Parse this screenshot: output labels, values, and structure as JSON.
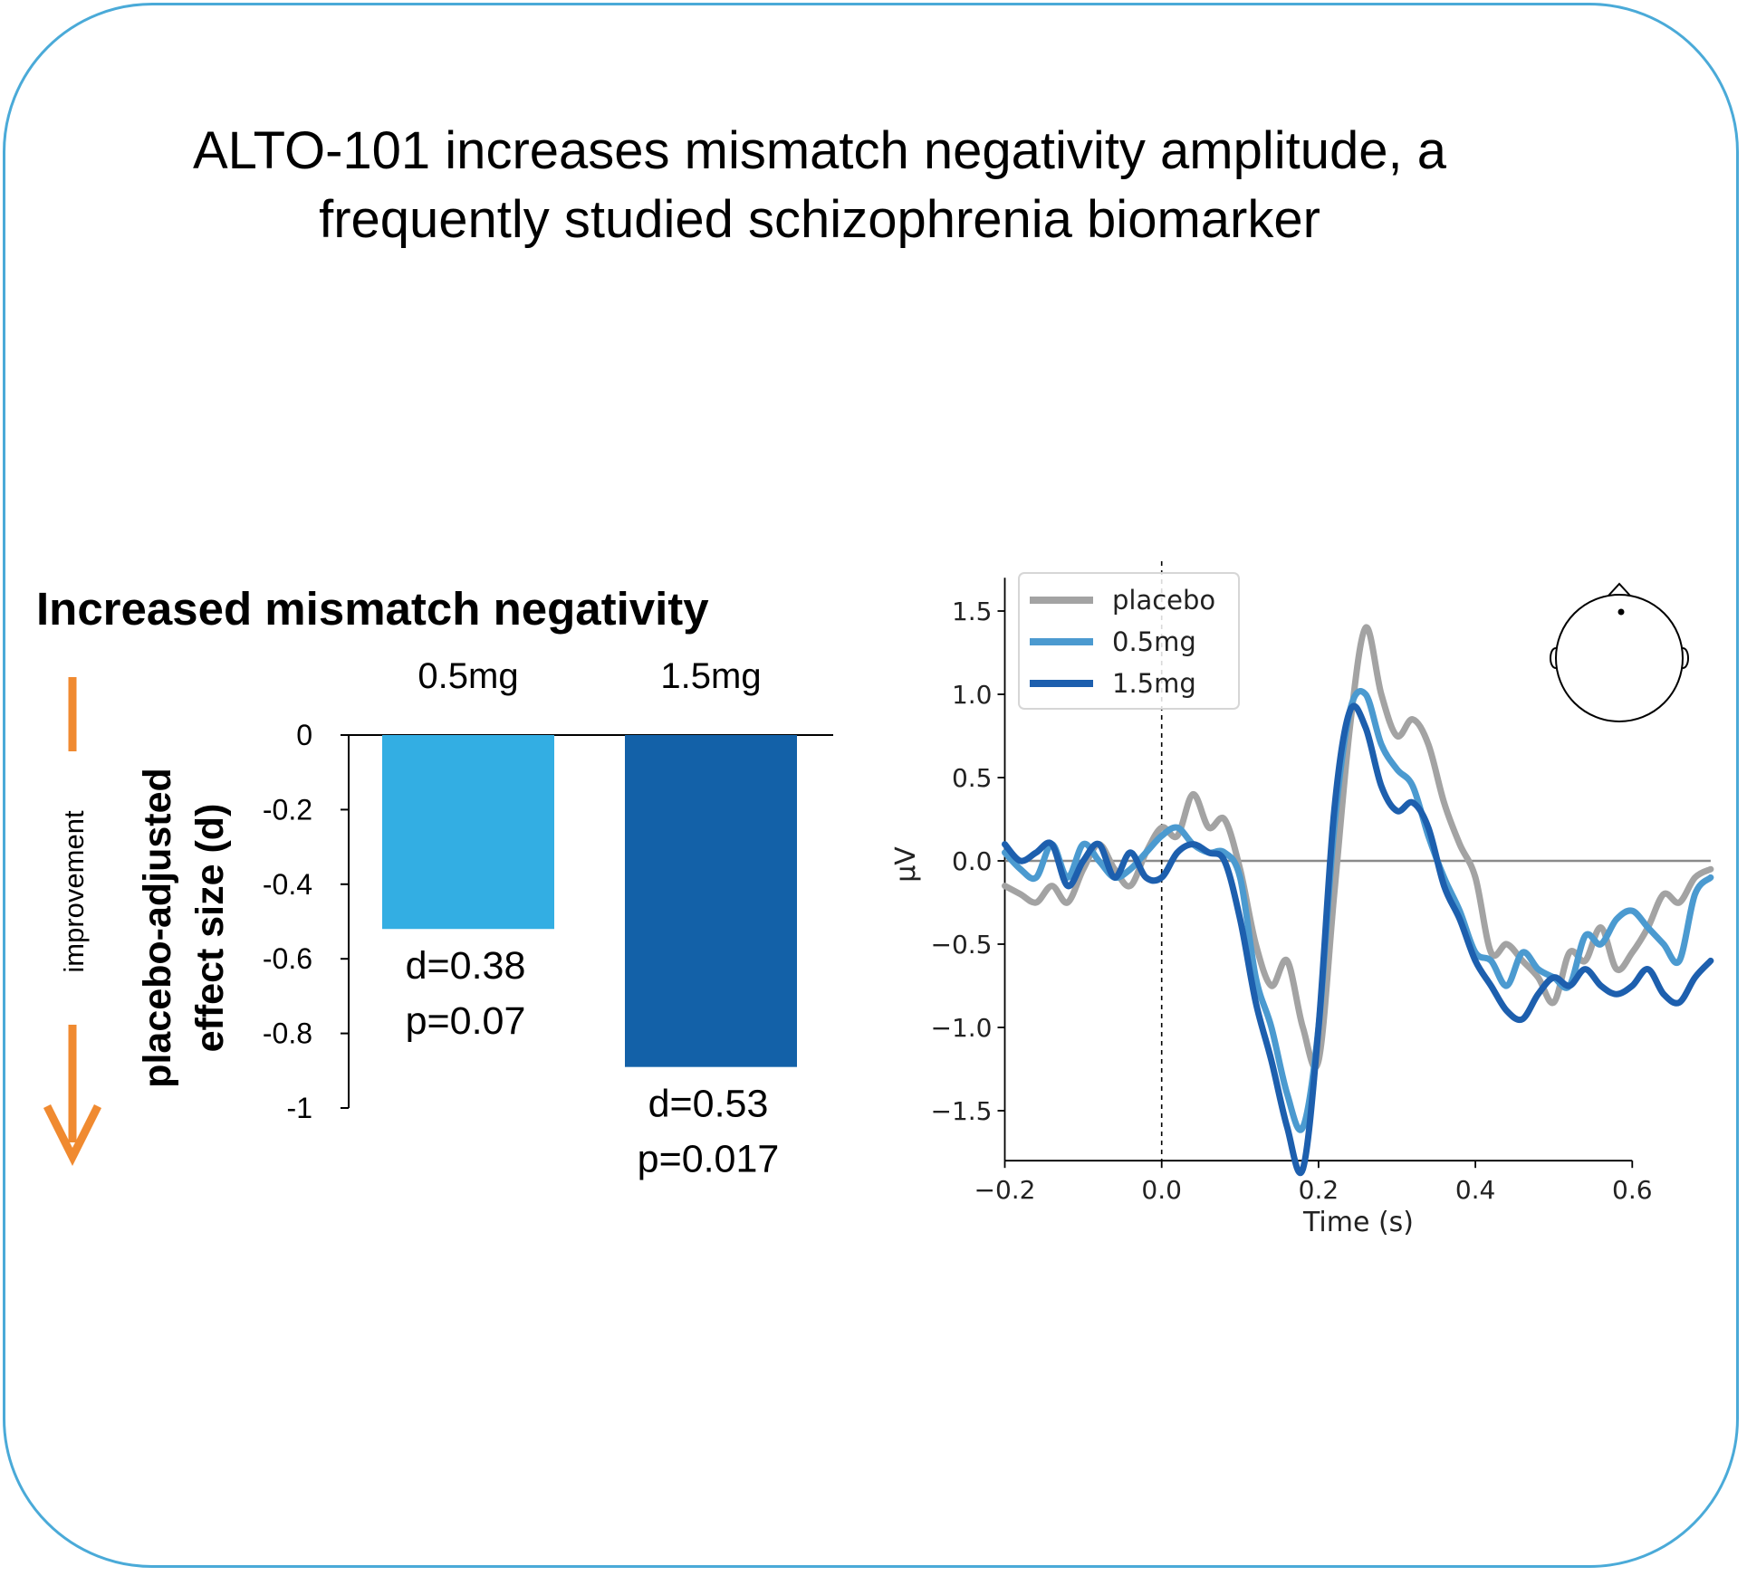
{
  "title": {
    "line1": "ALTO-101 increases mismatch negativity amplitude, a",
    "line2": "frequently studied schizophrenia biomarker"
  },
  "colors": {
    "frame": "#4aaad8",
    "bar_05mg": "#33aee3",
    "bar_15mg": "#1361a8",
    "arrow": "#f08a30",
    "placebo": "#a3a3a3",
    "line_05mg": "#4b9ad0",
    "line_15mg": "#1d5fae"
  },
  "chart_data": [
    {
      "type": "bar",
      "title": "Increased mismatch negativity",
      "ylabel": "placebo-adjusted effect size (d)",
      "ylabel_lines": [
        "placebo-adjusted",
        "effect size (d)"
      ],
      "side_label": "improvement",
      "categories": [
        "0.5mg",
        "1.5mg"
      ],
      "values": [
        -0.52,
        -0.89
      ],
      "ylim": [
        -1,
        0
      ],
      "yticks": [
        0,
        -0.2,
        -0.4,
        -0.6,
        -0.8,
        -1
      ],
      "ytick_labels": [
        "0",
        "-0.2",
        "-0.4",
        "-0.6",
        "-0.8",
        "-1"
      ],
      "annotations": [
        {
          "d": "d=0.38",
          "p": "p=0.07"
        },
        {
          "d": "d=0.53",
          "p": "p=0.017"
        }
      ]
    },
    {
      "type": "line",
      "xlabel": "Time (s)",
      "ylabel": "µV",
      "xlim": [
        -0.2,
        0.7
      ],
      "ylim": [
        -1.8,
        1.7
      ],
      "xticks": [
        -0.2,
        0.0,
        0.2,
        0.4,
        0.6
      ],
      "xtick_labels": [
        "−0.2",
        "0.0",
        "0.2",
        "0.4",
        "0.6"
      ],
      "yticks": [
        1.5,
        1.0,
        0.5,
        0.0,
        -0.5,
        -1.0,
        -1.5
      ],
      "ytick_labels": [
        "1.5",
        "1.0",
        "0.5",
        "0.0",
        "−0.5",
        "−1.0",
        "−1.5"
      ],
      "zero_line_y": 0,
      "onset_line_x": 0,
      "legend_placement": "top-left",
      "x": [
        -0.2,
        -0.18,
        -0.16,
        -0.14,
        -0.12,
        -0.1,
        -0.08,
        -0.06,
        -0.04,
        -0.02,
        0.0,
        0.02,
        0.04,
        0.06,
        0.08,
        0.1,
        0.12,
        0.14,
        0.16,
        0.18,
        0.2,
        0.22,
        0.24,
        0.26,
        0.28,
        0.3,
        0.32,
        0.34,
        0.36,
        0.38,
        0.4,
        0.42,
        0.44,
        0.46,
        0.48,
        0.5,
        0.52,
        0.54,
        0.56,
        0.58,
        0.6,
        0.62,
        0.64,
        0.66,
        0.68,
        0.7
      ],
      "series": [
        {
          "name": "placebo",
          "values": [
            -0.15,
            -0.2,
            -0.25,
            -0.15,
            -0.25,
            -0.05,
            0.1,
            -0.05,
            -0.15,
            0.05,
            0.2,
            0.15,
            0.4,
            0.2,
            0.25,
            -0.05,
            -0.5,
            -0.75,
            -0.6,
            -1.0,
            -1.2,
            -0.2,
            0.8,
            1.4,
            1.0,
            0.75,
            0.85,
            0.7,
            0.35,
            0.1,
            -0.1,
            -0.55,
            -0.5,
            -0.6,
            -0.7,
            -0.85,
            -0.55,
            -0.6,
            -0.4,
            -0.65,
            -0.55,
            -0.4,
            -0.2,
            -0.25,
            -0.1,
            -0.05
          ]
        },
        {
          "name": "0.5mg",
          "values": [
            0.05,
            -0.05,
            -0.1,
            0.1,
            -0.1,
            0.1,
            0.0,
            -0.1,
            -0.05,
            0.05,
            0.15,
            0.2,
            0.1,
            0.05,
            0.05,
            -0.1,
            -0.7,
            -1.0,
            -1.4,
            -1.6,
            -1.0,
            0.2,
            0.9,
            1.0,
            0.7,
            0.55,
            0.45,
            0.15,
            -0.1,
            -0.3,
            -0.55,
            -0.6,
            -0.75,
            -0.55,
            -0.65,
            -0.7,
            -0.75,
            -0.45,
            -0.5,
            -0.35,
            -0.3,
            -0.4,
            -0.5,
            -0.6,
            -0.2,
            -0.1
          ]
        },
        {
          "name": "1.5mg",
          "values": [
            0.1,
            0.0,
            0.05,
            0.1,
            -0.15,
            0.0,
            0.1,
            -0.1,
            0.05,
            -0.1,
            -0.1,
            0.05,
            0.1,
            0.05,
            0.0,
            -0.35,
            -0.85,
            -1.2,
            -1.6,
            -1.85,
            -1.0,
            0.3,
            0.9,
            0.8,
            0.45,
            0.3,
            0.35,
            0.2,
            -0.15,
            -0.35,
            -0.6,
            -0.75,
            -0.9,
            -0.95,
            -0.8,
            -0.7,
            -0.75,
            -0.65,
            -0.75,
            -0.8,
            -0.75,
            -0.65,
            -0.8,
            -0.85,
            -0.7,
            -0.6
          ]
        }
      ]
    }
  ]
}
